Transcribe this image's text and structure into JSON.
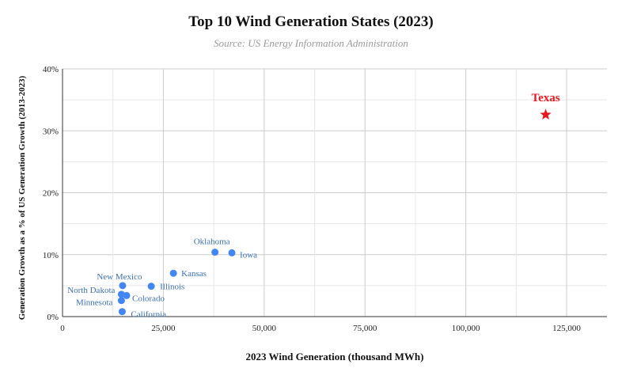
{
  "chart_data": {
    "type": "scatter",
    "title": "Top 10 Wind Generation States (2023)",
    "subtitle": "Source: US Energy Information Administration",
    "xlabel": "2023 Wind Generation (thousand MWh)",
    "ylabel": "Generation Growth as a % of US Generation Growth (2013-2023)",
    "xlim": [
      0,
      135000
    ],
    "ylim": [
      0,
      40
    ],
    "x_ticks": [
      "0",
      "25,000",
      "50,000",
      "75,000",
      "100,000",
      "125,000"
    ],
    "y_ticks": [
      "0%",
      "10%",
      "20%",
      "30%",
      "40%"
    ],
    "grid": true,
    "colors": {
      "point": "#4285f4",
      "highlight": "#e8171f",
      "label": "#3a6fb5"
    },
    "points": [
      {
        "label": "Texas",
        "x": 119800,
        "y": 32.6,
        "marker": "star",
        "highlight": true
      },
      {
        "label": "Iowa",
        "x": 42000,
        "y": 10.3
      },
      {
        "label": "Oklahoma",
        "x": 37800,
        "y": 10.4
      },
      {
        "label": "Kansas",
        "x": 27500,
        "y": 7.0
      },
      {
        "label": "Illinois",
        "x": 22000,
        "y": 4.9
      },
      {
        "label": "New Mexico",
        "x": 14900,
        "y": 5.0
      },
      {
        "label": "North Dakota",
        "x": 14600,
        "y": 3.6
      },
      {
        "label": "Colorado",
        "x": 15900,
        "y": 3.4
      },
      {
        "label": "Minnesota",
        "x": 14600,
        "y": 2.6
      },
      {
        "label": "California",
        "x": 14800,
        "y": 0.8
      }
    ]
  }
}
